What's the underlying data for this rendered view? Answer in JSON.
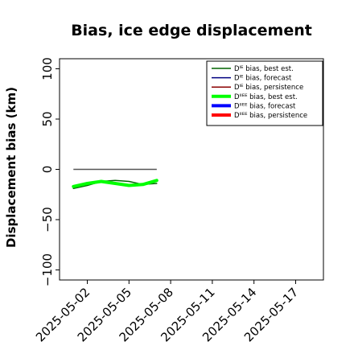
{
  "chart_data": {
    "type": "line",
    "title": "Bias, ice edge displacement",
    "xlabel": "",
    "ylabel": "Displacement bias (km)",
    "ylim": [
      -110,
      110
    ],
    "xlim": [
      "2025-04-30",
      "2025-05-19"
    ],
    "x_ticks": [
      "2025-05-02",
      "2025-05-05",
      "2025-05-08",
      "2025-05-11",
      "2025-05-14",
      "2025-05-17"
    ],
    "highlight_tick": "2025-05-08",
    "highlight_color": "#228b22",
    "y_ticks": [
      100,
      50,
      0,
      -50,
      -100
    ],
    "y_tick_labels": [
      "100",
      "50",
      "0",
      "−50",
      "−100"
    ],
    "grid": false,
    "legend_position": "top-right",
    "series": [
      {
        "name": "Dᴵᴱ bias, best est.",
        "color": "#006400",
        "width": 1.5,
        "points": [
          [
            "2025-05-01",
            -19
          ],
          [
            "2025-05-02",
            -16
          ],
          [
            "2025-05-03",
            -12
          ],
          [
            "2025-05-04",
            -11
          ],
          [
            "2025-05-05",
            -12
          ],
          [
            "2025-05-06",
            -15
          ],
          [
            "2025-05-07",
            -14
          ]
        ]
      },
      {
        "name": "Dᴵᴱ bias, forecast",
        "color": "#000080",
        "width": 1.5,
        "points": []
      },
      {
        "name": "Dᴵᴱ bias, persistence",
        "color": "#8b0000",
        "width": 1.5,
        "points": []
      },
      {
        "name": "Dᴵᴵᴱᴱ bias, best est.",
        "color": "#00ff00",
        "width": 4,
        "points": [
          [
            "2025-05-01",
            -17
          ],
          [
            "2025-05-02",
            -14
          ],
          [
            "2025-05-03",
            -12
          ],
          [
            "2025-05-04",
            -14
          ],
          [
            "2025-05-05",
            -16
          ],
          [
            "2025-05-06",
            -15
          ],
          [
            "2025-05-07",
            -11
          ]
        ]
      },
      {
        "name": "Dᴵᴵᴱᴱ bias, forecast",
        "color": "#0000ff",
        "width": 4,
        "points": []
      },
      {
        "name": "Dᴵᴵᴱᴱ bias, persistence",
        "color": "#ff0000",
        "width": 4,
        "points": []
      }
    ],
    "reference_line": {
      "y": 0,
      "x": [
        "2025-05-01",
        "2025-05-07"
      ],
      "color": "#555555"
    }
  }
}
